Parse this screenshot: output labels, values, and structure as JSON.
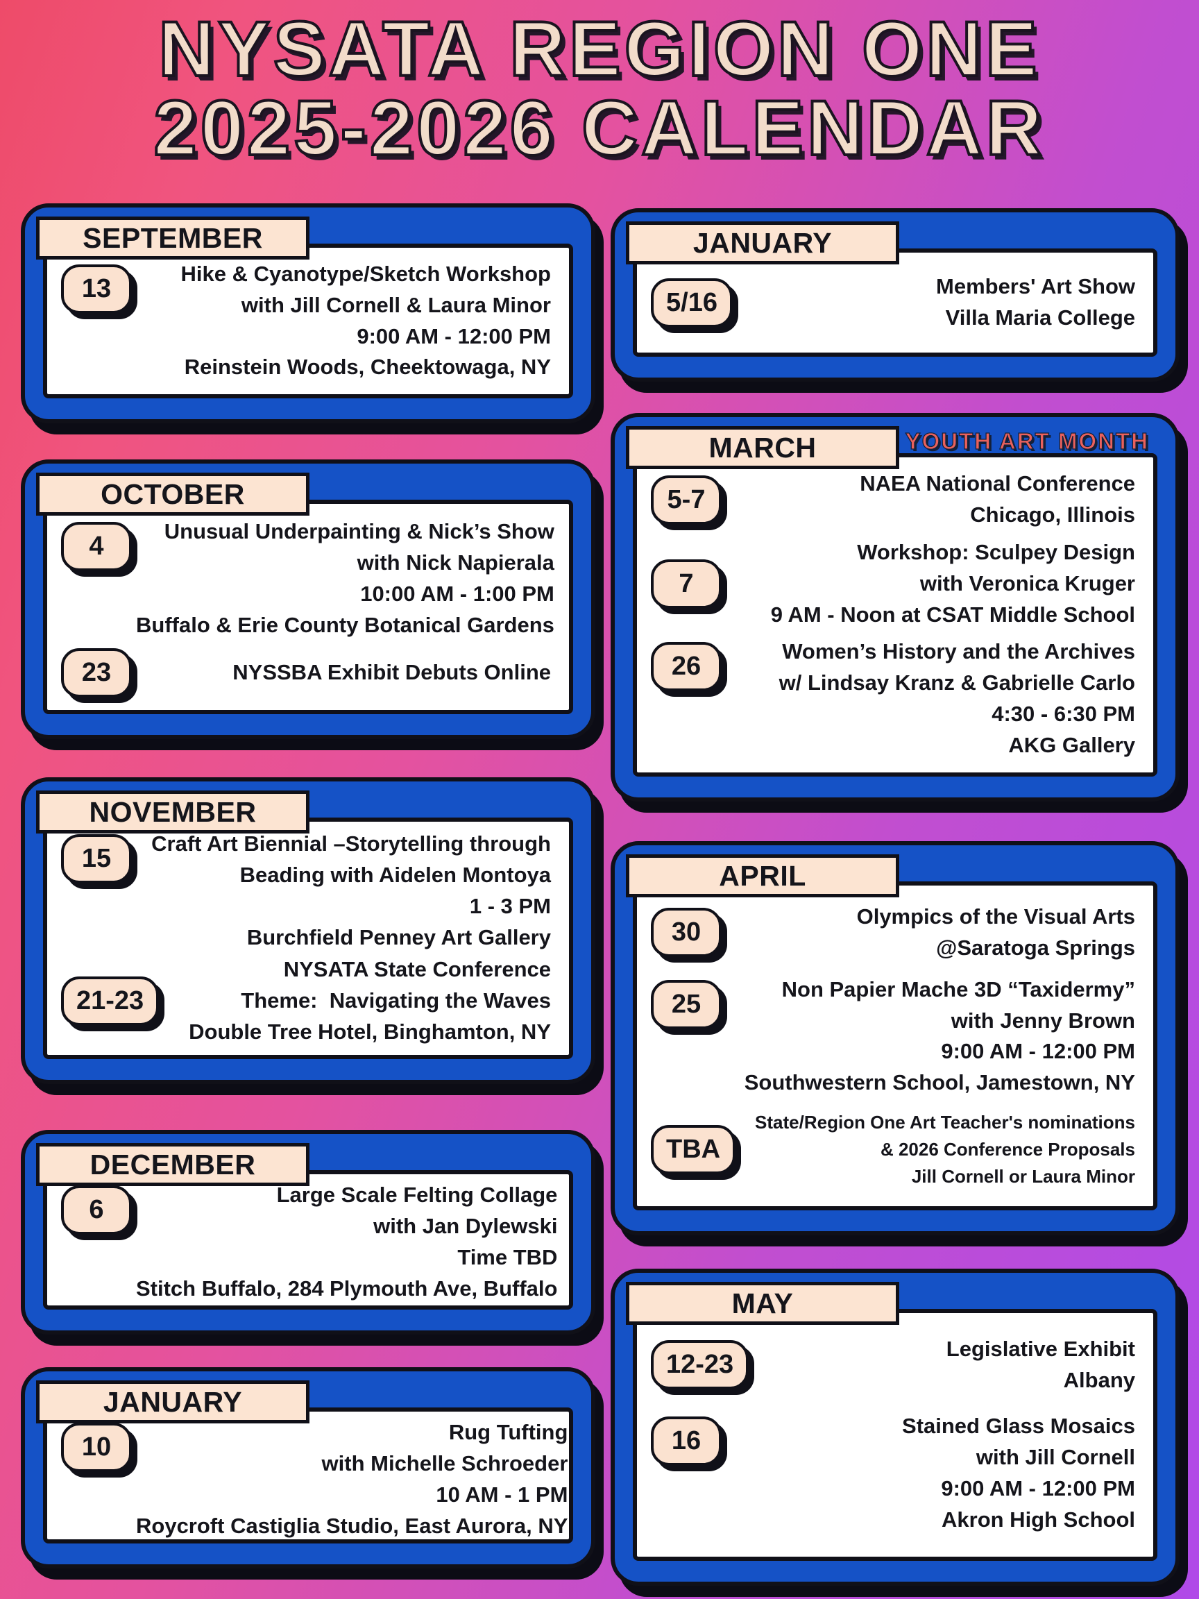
{
  "title": {
    "line1": "NYSATA REGION ONE",
    "line2": "2025-2026 CALENDAR"
  },
  "colors": {
    "background_left": "#ee4b69",
    "background_right": "#b04ae8",
    "card_blue": "#1552c6",
    "outline_black": "#101018",
    "cream": "#fbe2d0",
    "title_cream": "#f2dcca",
    "banner_red": "#e9615d"
  },
  "columns": [
    {
      "cards": [
        {
          "month": "SEPTEMBER",
          "events": [
            {
              "date": "13",
              "lines": [
                "Hike & Cyanotype/Sketch Workshop",
                "with Jill Cornell & Laura Minor",
                "9:00 AM - 12:00 PM",
                "Reinstein Woods, Cheektowaga, NY"
              ]
            }
          ]
        },
        {
          "month": "OCTOBER",
          "events": [
            {
              "date": "4",
              "lines": [
                "Unusual Underpainting & Nick’s Show",
                "with Nick Napierala",
                "10:00 AM - 1:00 PM",
                "Buffalo & Erie County Botanical Gardens"
              ]
            },
            {
              "date": "23",
              "lines": [
                "NYSSBA Exhibit Debuts Online"
              ]
            }
          ]
        },
        {
          "month": "NOVEMBER",
          "events": [
            {
              "date": "15",
              "lines": [
                "Craft Art Biennial –Storytelling through",
                "Beading with Aidelen Montoya",
                "1 - 3 PM",
                "Burchfield Penney Art Gallery"
              ]
            },
            {
              "date": "21-23",
              "lines": [
                "NYSATA State Conference",
                "Theme:  Navigating the Waves",
                "Double Tree Hotel, Binghamton, NY"
              ]
            }
          ]
        },
        {
          "month": "DECEMBER",
          "events": [
            {
              "date": "6",
              "lines": [
                "Large Scale Felting Collage",
                "with Jan Dylewski",
                "Time TBD",
                "Stitch Buffalo, 284 Plymouth Ave, Buffalo"
              ]
            }
          ]
        },
        {
          "month": "JANUARY",
          "events": [
            {
              "date": "10",
              "lines": [
                "Rug Tufting",
                "with Michelle Schroeder",
                "10 AM - 1 PM",
                "Roycroft Castiglia Studio, East Aurora, NY"
              ]
            }
          ]
        }
      ]
    },
    {
      "cards": [
        {
          "month": "JANUARY",
          "events": [
            {
              "date": "5/16",
              "lines": [
                "Members' Art Show",
                "Villa Maria College"
              ]
            }
          ]
        },
        {
          "month": "MARCH",
          "banner": "YOUTH ART MONTH",
          "events": [
            {
              "date": "5-7",
              "lines": [
                "NAEA National Conference",
                "Chicago, Illinois"
              ]
            },
            {
              "date": "7",
              "lines": [
                "Workshop: Sculpey Design",
                "with Veronica Kruger",
                "9 AM - Noon at CSAT Middle School"
              ]
            },
            {
              "date": "26",
              "lines": [
                "Women’s History and the Archives",
                "w/ Lindsay Kranz & Gabrielle Carlo",
                "4:30 - 6:30 PM",
                "AKG Gallery"
              ]
            }
          ]
        },
        {
          "month": "APRIL",
          "events": [
            {
              "date": "30",
              "lines": [
                "Olympics of the Visual Arts",
                "@Saratoga Springs"
              ]
            },
            {
              "date": "25",
              "lines": [
                "Non Papier Mache 3D “Taxidermy”",
                "with Jenny Brown",
                "9:00 AM - 12:00 PM",
                "Southwestern School, Jamestown, NY"
              ]
            },
            {
              "date": "TBA",
              "lines": [
                "State/Region One Art Teacher's nominations",
                "& 2026 Conference Proposals",
                "Jill Cornell or Laura Minor"
              ]
            }
          ]
        },
        {
          "month": "MAY",
          "events": [
            {
              "date": "12-23",
              "lines": [
                "Legislative Exhibit",
                "Albany"
              ]
            },
            {
              "date": "16",
              "lines": [
                "Stained Glass Mosaics",
                "with Jill Cornell",
                "9:00 AM - 12:00 PM",
                "Akron High School"
              ]
            }
          ]
        }
      ]
    }
  ]
}
